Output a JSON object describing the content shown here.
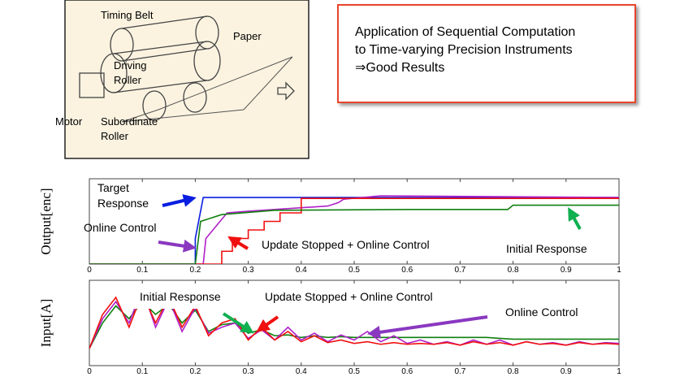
{
  "diagram": {
    "labels": [
      "Timing Belt",
      "Paper",
      "Driving Roller",
      "Motor",
      "Subordinate Roller"
    ]
  },
  "callout": {
    "lines": [
      "Application of Sequential Computation",
      "to Time-varying Precision Instruments",
      "⇒Good Results"
    ]
  },
  "chart_data": [
    {
      "type": "line",
      "y_label": "Output[enc]",
      "xlim": [
        0,
        1
      ],
      "ylim": [
        0,
        1
      ],
      "xticks": [
        0,
        0.1,
        0.2,
        0.3,
        0.4,
        0.5,
        0.6,
        0.7,
        0.8,
        0.9,
        1
      ],
      "series": [
        {
          "name": "Target Response",
          "color": "#0a1ee0",
          "x": [
            0,
            0.2,
            0.2,
            0.215,
            1
          ],
          "values": [
            0,
            0,
            0.3,
            0.78,
            0.78
          ]
        },
        {
          "name": "Online Control",
          "color": "#b020c8",
          "x": [
            0,
            0.215,
            0.22,
            0.24,
            0.26,
            0.3,
            0.45,
            0.47,
            0.48,
            0.55,
            1
          ],
          "values": [
            0,
            0,
            0.3,
            0.45,
            0.6,
            0.62,
            0.68,
            0.72,
            0.76,
            0.8,
            0.78
          ]
        },
        {
          "name": "Update Stopped + Online Control",
          "color": "#f01010",
          "x": [
            0,
            0.25,
            0.25,
            0.27,
            0.27,
            0.3,
            0.3,
            0.33,
            0.33,
            0.36,
            0.36,
            0.4,
            0.4,
            1
          ],
          "values": [
            0,
            0,
            0.15,
            0.15,
            0.3,
            0.3,
            0.4,
            0.4,
            0.5,
            0.5,
            0.6,
            0.6,
            0.77,
            0.77
          ]
        },
        {
          "name": "Initial Response",
          "color": "#108010",
          "x": [
            0,
            0.2,
            0.21,
            0.25,
            0.35,
            0.6,
            0.79,
            0.8,
            1
          ],
          "values": [
            0,
            0,
            0.5,
            0.58,
            0.63,
            0.64,
            0.64,
            0.69,
            0.69
          ]
        }
      ]
    },
    {
      "type": "line",
      "y_label": "Input[A]",
      "xlim": [
        0,
        1
      ],
      "ylim": [
        0,
        1
      ],
      "xticks": [
        0,
        0.1,
        0.2,
        0.3,
        0.4,
        0.5,
        0.6,
        0.7,
        0.8,
        0.9,
        1
      ],
      "x": [
        0,
        0.025,
        0.05,
        0.075,
        0.1,
        0.125,
        0.15,
        0.175,
        0.2,
        0.225,
        0.25,
        0.275,
        0.3,
        0.325,
        0.35,
        0.375,
        0.4,
        0.425,
        0.45,
        0.475,
        0.5,
        0.525,
        0.55,
        0.575,
        0.6,
        0.625,
        0.65,
        0.675,
        0.7,
        0.725,
        0.75,
        0.775,
        0.8,
        0.825,
        0.85,
        0.875,
        0.9,
        0.925,
        0.95,
        0.975,
        1
      ],
      "series": [
        {
          "name": "Initial Response",
          "color": "#108010",
          "values": [
            0.2,
            0.5,
            0.7,
            0.55,
            0.75,
            0.6,
            0.72,
            0.5,
            0.65,
            0.4,
            0.48,
            0.5,
            0.38,
            0.42,
            0.35,
            0.36,
            0.33,
            0.35,
            0.33,
            0.34,
            0.33,
            0.33,
            0.33,
            0.33,
            0.33,
            0.33,
            0.33,
            0.33,
            0.33,
            0.33,
            0.33,
            0.32,
            0.31,
            0.31,
            0.31,
            0.31,
            0.31,
            0.31,
            0.31,
            0.31,
            0.31
          ]
        },
        {
          "name": "Online Control",
          "color": "#b020c8",
          "values": [
            0.2,
            0.55,
            0.75,
            0.5,
            0.9,
            0.45,
            0.78,
            0.4,
            0.68,
            0.38,
            0.45,
            0.5,
            0.32,
            0.42,
            0.3,
            0.45,
            0.3,
            0.38,
            0.28,
            0.36,
            0.3,
            0.4,
            0.28,
            0.35,
            0.26,
            0.3,
            0.25,
            0.28,
            0.24,
            0.3,
            0.25,
            0.3,
            0.24,
            0.28,
            0.25,
            0.27,
            0.24,
            0.28,
            0.25,
            0.27,
            0.26
          ]
        },
        {
          "name": "Update Stopped + Online Control",
          "color": "#f01010",
          "values": [
            0.2,
            0.6,
            0.8,
            0.45,
            0.85,
            0.5,
            0.8,
            0.45,
            0.7,
            0.35,
            0.5,
            0.55,
            0.3,
            0.45,
            0.3,
            0.4,
            0.28,
            0.35,
            0.27,
            0.3,
            0.26,
            0.28,
            0.25,
            0.27,
            0.25,
            0.26,
            0.25,
            0.27,
            0.24,
            0.28,
            0.25,
            0.27,
            0.24,
            0.28,
            0.25,
            0.26,
            0.24,
            0.27,
            0.25,
            0.26,
            0.25
          ]
        }
      ]
    }
  ]
}
